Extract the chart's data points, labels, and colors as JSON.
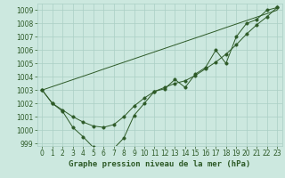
{
  "xlabel": "Graphe pression niveau de la mer (hPa)",
  "bg_color": "#cce8df",
  "grid_color": "#aacfc5",
  "line_color": "#2d5a27",
  "hours": [
    0,
    1,
    2,
    3,
    4,
    5,
    6,
    7,
    8,
    9,
    10,
    11,
    12,
    13,
    14,
    15,
    16,
    17,
    18,
    19,
    20,
    21,
    22,
    23
  ],
  "y_measured": [
    1003.0,
    1002.0,
    1001.4,
    1000.2,
    999.5,
    998.7,
    998.6,
    998.6,
    999.4,
    1001.1,
    1002.0,
    1002.9,
    1003.1,
    1003.8,
    1003.2,
    1004.2,
    1004.7,
    1006.0,
    1005.0,
    1007.0,
    1008.0,
    1008.3,
    1009.0,
    1009.2
  ],
  "y_smooth": [
    1003.0,
    1002.0,
    1001.5,
    1001.0,
    1000.6,
    1000.3,
    1000.2,
    1000.4,
    1001.0,
    1001.8,
    1002.4,
    1002.9,
    1003.2,
    1003.5,
    1003.7,
    1004.1,
    1004.6,
    1005.1,
    1005.7,
    1006.4,
    1007.2,
    1007.9,
    1008.5,
    1009.2
  ],
  "y_linear": [
    1003.0,
    1003.26,
    1003.52,
    1003.78,
    1004.04,
    1004.3,
    1004.57,
    1004.83,
    1005.09,
    1005.35,
    1005.61,
    1005.87,
    1006.13,
    1006.39,
    1006.65,
    1006.91,
    1007.17,
    1007.43,
    1007.7,
    1007.96,
    1008.22,
    1008.48,
    1008.74,
    1009.0
  ],
  "ylim_min": 998.8,
  "ylim_max": 1009.5,
  "yticks": [
    999,
    1000,
    1001,
    1002,
    1003,
    1004,
    1005,
    1006,
    1007,
    1008,
    1009
  ],
  "marker_size": 2.5,
  "tick_fontsize": 5.5,
  "label_fontsize": 6.5
}
